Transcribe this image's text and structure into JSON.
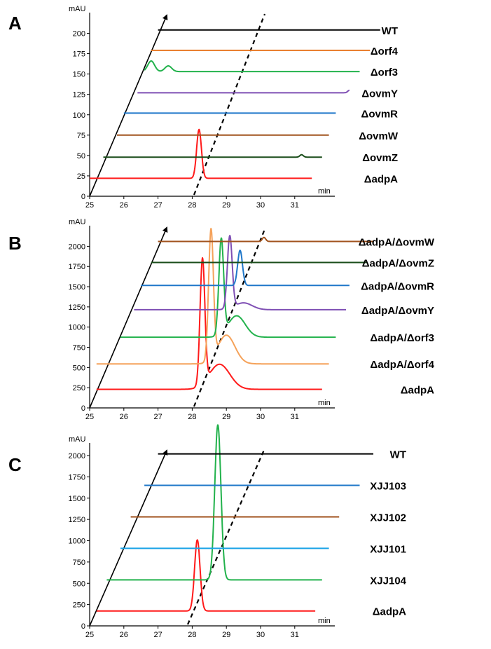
{
  "chart_data": [
    {
      "panel": "A",
      "type": "line",
      "xlabel": "min",
      "ylabel": "mAU",
      "x_ticks": [
        25,
        26,
        27,
        28,
        29,
        30,
        31
      ],
      "y_ticks": [
        0,
        25,
        50,
        75,
        100,
        125,
        150,
        175,
        200
      ],
      "xlim": [
        25,
        31.8
      ],
      "ylim": [
        0,
        215
      ],
      "series": [
        {
          "name": "ΔadpA",
          "color": "#ff1a1a",
          "baseline": 22,
          "x_start": 25.0,
          "x_end": 31.5,
          "peaks": [
            {
              "rt": 28.2,
              "height": 82,
              "width": 0.07
            }
          ],
          "bumps": [
            [
              26.6,
              2
            ]
          ]
        },
        {
          "name": "ΔovmZ",
          "color": "#1a4d1a",
          "baseline": 48,
          "x_start": 25.4,
          "x_end": 31.8,
          "peaks": [
            {
              "rt": 31.2,
              "height": 51,
              "width": 0.05
            }
          ],
          "bumps": []
        },
        {
          "name": "ΔovmW",
          "color": "#a0521d",
          "baseline": 75,
          "x_start": 25.8,
          "x_end": 32.0,
          "peaks": [],
          "bumps": []
        },
        {
          "name": "ΔovmR",
          "color": "#1f77c9",
          "baseline": 102,
          "x_start": 26.0,
          "x_end": 32.2,
          "peaks": [],
          "bumps": [
            [
              26.3,
              104
            ]
          ]
        },
        {
          "name": "ΔovmY",
          "color": "#7f4fb4",
          "baseline": 127,
          "x_start": 26.4,
          "x_end": 32.6,
          "peaks": [
            {
              "rt": 32.6,
              "height": 130,
              "width": 0.05
            }
          ],
          "bumps": []
        },
        {
          "name": "Δorf3",
          "color": "#22b24c",
          "baseline": 153,
          "x_start": 26.6,
          "x_end": 32.9,
          "peaks": [
            {
              "rt": 26.8,
              "height": 166,
              "width": 0.1
            },
            {
              "rt": 27.3,
              "height": 160,
              "width": 0.1
            }
          ],
          "bumps": []
        },
        {
          "name": "Δorf4",
          "color": "#e87722",
          "baseline": 179,
          "x_start": 26.8,
          "x_end": 33.2,
          "peaks": [],
          "bumps": []
        },
        {
          "name": "WT",
          "color": "#000000",
          "baseline": 204,
          "x_start": 27.0,
          "x_end": 33.5,
          "peaks": [],
          "bumps": [
            [
              27.5,
              206
            ]
          ]
        }
      ]
    },
    {
      "panel": "B",
      "type": "line",
      "xlabel": "min",
      "ylabel": "mAU",
      "x_ticks": [
        25,
        26,
        27,
        28,
        29,
        30,
        31
      ],
      "y_ticks": [
        0,
        250,
        500,
        750,
        1000,
        1250,
        1500,
        1750,
        2000
      ],
      "xlim": [
        25,
        31.8
      ],
      "ylim": [
        0,
        2150
      ],
      "series": [
        {
          "name": "ΔadpA",
          "color": "#ff1a1a",
          "baseline": 230,
          "x_start": 25.2,
          "x_end": 31.8,
          "peaks": [
            {
              "rt": 28.3,
              "height": 1780,
              "width": 0.07
            },
            {
              "rt": 28.8,
              "height": 540,
              "width": 0.3
            }
          ],
          "bumps": []
        },
        {
          "name": "ΔadpA/Δorf4",
          "color": "#f5a25a",
          "baseline": 545,
          "x_start": 25.2,
          "x_end": 32.0,
          "peaks": [
            {
              "rt": 28.55,
              "height": 2150,
              "width": 0.07
            },
            {
              "rt": 29.0,
              "height": 900,
              "width": 0.25
            }
          ],
          "bumps": []
        },
        {
          "name": "ΔadpA/Δorf3",
          "color": "#22b24c",
          "baseline": 875,
          "x_start": 25.9,
          "x_end": 32.2,
          "peaks": [
            {
              "rt": 28.85,
              "height": 2050,
              "width": 0.07
            },
            {
              "rt": 29.3,
              "height": 1140,
              "width": 0.25
            }
          ],
          "bumps": []
        },
        {
          "name": "ΔadpA/ΔovmY",
          "color": "#7f4fb4",
          "baseline": 1215,
          "x_start": 26.3,
          "x_end": 32.5,
          "peaks": [
            {
              "rt": 29.1,
              "height": 2110,
              "width": 0.07
            },
            {
              "rt": 29.5,
              "height": 1300,
              "width": 0.25
            }
          ],
          "bumps": []
        },
        {
          "name": "ΔadpA/ΔovmR",
          "color": "#1f77c9",
          "baseline": 1515,
          "x_start": 26.5,
          "x_end": 32.6,
          "peaks": [
            {
              "rt": 29.4,
              "height": 1950,
              "width": 0.07
            }
          ],
          "bumps": []
        },
        {
          "name": "ΔadpA/ΔovmZ",
          "color": "#1a4d1a",
          "baseline": 1800,
          "x_start": 26.8,
          "x_end": 33.1,
          "peaks": [],
          "bumps": []
        },
        {
          "name": "ΔadpA/ΔovmW",
          "color": "#a0521d",
          "baseline": 2060,
          "x_start": 27.0,
          "x_end": 33.3,
          "peaks": [
            {
              "rt": 30.1,
              "height": 2110,
              "width": 0.05
            }
          ],
          "bumps": []
        }
      ]
    },
    {
      "panel": "C",
      "type": "line",
      "xlabel": "min",
      "ylabel": "mAU",
      "x_ticks": [
        25,
        26,
        27,
        28,
        29,
        30,
        31
      ],
      "y_ticks": [
        0,
        250,
        500,
        750,
        1000,
        1250,
        1500,
        1750,
        2000
      ],
      "xlim": [
        25,
        31.8
      ],
      "ylim": [
        0,
        2150
      ],
      "series": [
        {
          "name": "ΔadpA",
          "color": "#ff1a1a",
          "baseline": 175,
          "x_start": 25.2,
          "x_end": 31.6,
          "peaks": [
            {
              "rt": 28.15,
              "height": 1010,
              "width": 0.08
            }
          ],
          "bumps": []
        },
        {
          "name": "XJJ104",
          "color": "#22b24c",
          "baseline": 540,
          "x_start": 25.5,
          "x_end": 31.8,
          "peaks": [
            {
              "rt": 28.75,
              "height": 2360,
              "width": 0.09
            }
          ],
          "bumps": []
        },
        {
          "name": "XJJ101",
          "color": "#1aa3e6",
          "baseline": 910,
          "x_start": 25.9,
          "x_end": 32.0,
          "peaks": [],
          "bumps": []
        },
        {
          "name": "XJJ102",
          "color": "#a0521d",
          "baseline": 1280,
          "x_start": 26.2,
          "x_end": 32.3,
          "peaks": [],
          "bumps": []
        },
        {
          "name": "XJJ103",
          "color": "#1f77c9",
          "baseline": 1650,
          "x_start": 26.6,
          "x_end": 32.9,
          "peaks": [],
          "bumps": []
        },
        {
          "name": "WT",
          "color": "#000000",
          "baseline": 2020,
          "x_start": 27.0,
          "x_end": 33.3,
          "peaks": [],
          "bumps": []
        }
      ]
    }
  ]
}
